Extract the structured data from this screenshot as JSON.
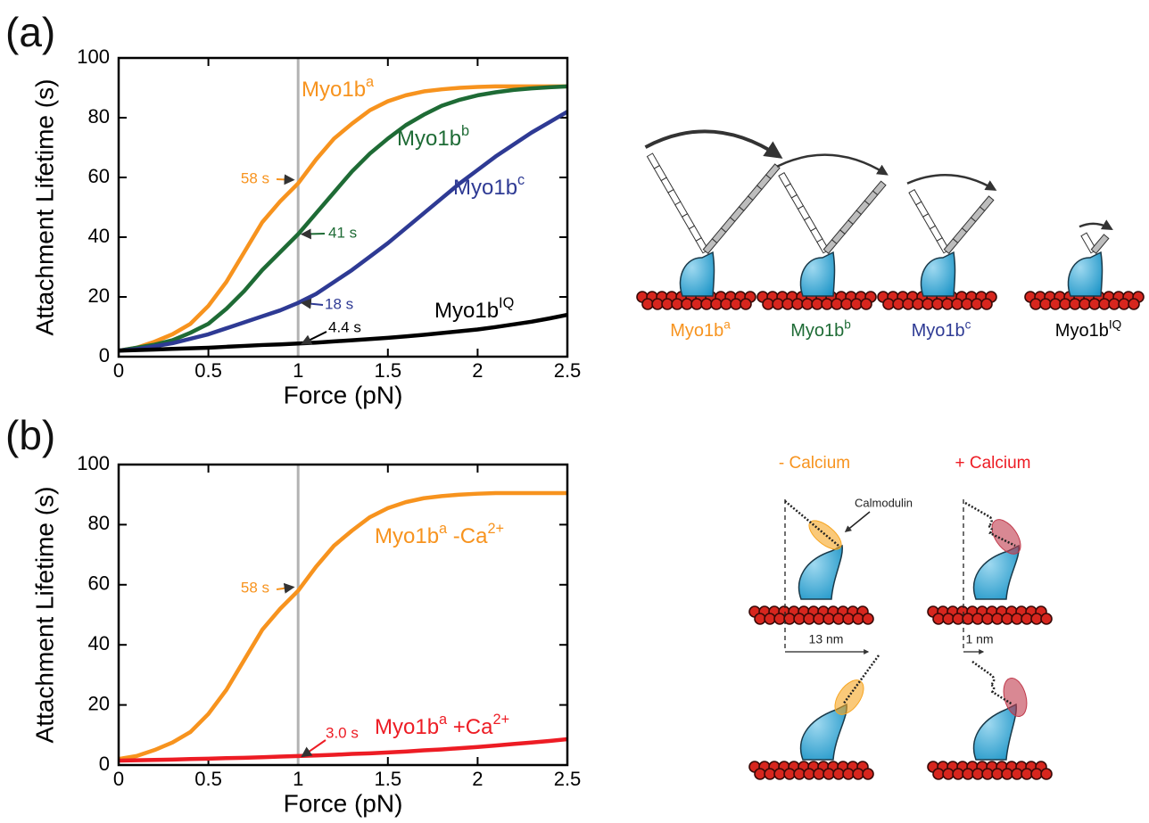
{
  "chart_data": [
    {
      "type": "line",
      "panel_label": "(a)",
      "xlabel": "Force (pN)",
      "ylabel": "Attachment Lifetime (s)",
      "xlim": [
        0,
        2.5
      ],
      "ylim": [
        0,
        100
      ],
      "xticks": [
        0,
        0.5,
        1,
        1.5,
        2,
        2.5
      ],
      "yticks": [
        0,
        20,
        40,
        60,
        80,
        100
      ],
      "vline": 1,
      "x": [
        0,
        0.1,
        0.2,
        0.3,
        0.4,
        0.5,
        0.6,
        0.7,
        0.8,
        0.9,
        1,
        1.1,
        1.2,
        1.3,
        1.4,
        1.5,
        1.6,
        1.7,
        1.8,
        1.9,
        2,
        2.1,
        2.2,
        2.3,
        2.4,
        2.5
      ],
      "series": [
        {
          "name": [
            {
              "text": "Myo1b"
            },
            {
              "text": "a",
              "sup": true
            }
          ],
          "color": "#f7931e",
          "values": [
            2,
            3,
            5,
            7.5,
            11,
            17,
            25,
            35,
            45,
            52,
            58,
            66,
            73,
            78,
            82.5,
            85.5,
            87.5,
            88.8,
            89.5,
            90,
            90.3,
            90.5,
            90.5,
            90.5,
            90.5,
            90.5
          ]
        },
        {
          "name": [
            {
              "text": "Myo1b"
            },
            {
              "text": "b",
              "sup": true
            }
          ],
          "color": "#1e6b35",
          "values": [
            2,
            3,
            4,
            5.5,
            8,
            11,
            16,
            22,
            29,
            35,
            41,
            48,
            55,
            62,
            68,
            73,
            77.5,
            81,
            84,
            86,
            87.5,
            88.5,
            89.3,
            89.8,
            90.2,
            90.5
          ]
        },
        {
          "name": [
            {
              "text": "Myo1b"
            },
            {
              "text": "c",
              "sup": true
            }
          ],
          "color": "#2e3a94",
          "values": [
            2,
            2.5,
            3.5,
            4.5,
            6,
            7.5,
            9.5,
            11.5,
            13.5,
            15.5,
            18,
            21,
            25,
            29,
            33.5,
            38,
            43,
            48,
            53,
            58,
            62.5,
            67,
            71,
            75,
            78.5,
            82
          ]
        },
        {
          "name": [
            {
              "text": "Myo1b"
            },
            {
              "text": "IQ",
              "sup": true
            }
          ],
          "color": "#000000",
          "values": [
            2,
            2.2,
            2.4,
            2.6,
            2.8,
            3,
            3.3,
            3.6,
            3.9,
            4.1,
            4.4,
            4.7,
            5.1,
            5.5,
            5.9,
            6.3,
            6.8,
            7.3,
            7.9,
            8.5,
            9.1,
            9.9,
            10.8,
            11.7,
            12.8,
            14
          ]
        }
      ],
      "annotations": [
        {
          "text": "58 s",
          "x": 1,
          "y": 58,
          "color": "#f7931e"
        },
        {
          "text": "41 s",
          "x": 1,
          "y": 41,
          "color": "#1e6b35"
        },
        {
          "text": "18 s",
          "x": 1,
          "y": 18,
          "color": "#2e3a94"
        },
        {
          "text": "4.4 s",
          "x": 1,
          "y": 4.4,
          "color": "#000000"
        }
      ]
    },
    {
      "type": "line",
      "panel_label": "(b)",
      "xlabel": "Force (pN)",
      "ylabel": "Attachment Lifetime (s)",
      "xlim": [
        0,
        2.5
      ],
      "ylim": [
        0,
        100
      ],
      "xticks": [
        0,
        0.5,
        1,
        1.5,
        2,
        2.5
      ],
      "yticks": [
        0,
        20,
        40,
        60,
        80,
        100
      ],
      "vline": 1,
      "x": [
        0,
        0.1,
        0.2,
        0.3,
        0.4,
        0.5,
        0.6,
        0.7,
        0.8,
        0.9,
        1,
        1.1,
        1.2,
        1.3,
        1.4,
        1.5,
        1.6,
        1.7,
        1.8,
        1.9,
        2,
        2.1,
        2.2,
        2.3,
        2.4,
        2.5
      ],
      "series": [
        {
          "name": [
            {
              "text": "Myo1b"
            },
            {
              "text": "a",
              "sup": true
            },
            {
              "text": " -Ca"
            },
            {
              "text": "2+",
              "sup": true
            }
          ],
          "color": "#f7931e",
          "values": [
            2,
            3,
            5,
            7.5,
            11,
            17,
            25,
            35,
            45,
            52,
            58,
            66,
            73,
            78,
            82.5,
            85.5,
            87.5,
            88.8,
            89.5,
            90,
            90.3,
            90.5,
            90.5,
            90.5,
            90.5,
            90.5
          ]
        },
        {
          "name": [
            {
              "text": "Myo1b"
            },
            {
              "text": "a",
              "sup": true
            },
            {
              "text": " +Ca"
            },
            {
              "text": "2+",
              "sup": true
            }
          ],
          "color": "#ed1c24",
          "values": [
            1.5,
            1.6,
            1.7,
            1.8,
            2,
            2.1,
            2.3,
            2.4,
            2.6,
            2.8,
            3,
            3.2,
            3.4,
            3.7,
            3.9,
            4.2,
            4.5,
            4.9,
            5.2,
            5.6,
            6,
            6.5,
            7,
            7.5,
            8,
            8.6
          ]
        }
      ],
      "annotations": [
        {
          "text": "58 s",
          "x": 1,
          "y": 58,
          "color": "#f7931e"
        },
        {
          "text": "3.0 s",
          "x": 1,
          "y": 3,
          "color": "#ed1c24"
        }
      ]
    }
  ],
  "diagram": {
    "minus_calcium": "- Calcium",
    "plus_calcium": "+ Calcium",
    "calmodulin": "Calmodulin",
    "minus_distance": "13 nm",
    "plus_distance": "1 nm"
  }
}
